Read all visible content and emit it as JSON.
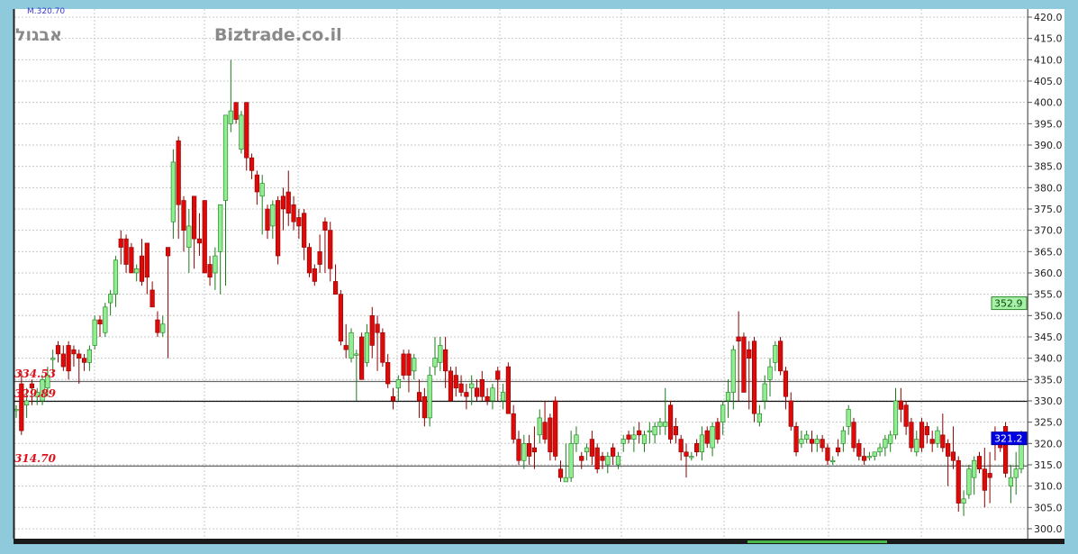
{
  "header": {
    "info": "M.320.70",
    "symbol": "אבגול",
    "watermark": "Biztrade.co.il"
  },
  "levels": [
    {
      "label": "334.53",
      "value": 334.53
    },
    {
      "label": "329.89",
      "value": 329.89
    },
    {
      "label": "314.70",
      "value": 314.7
    }
  ],
  "markers": [
    {
      "label": "352.9",
      "value": 352.9,
      "color": "#a8f0a8"
    },
    {
      "label": "321.2",
      "value": 321.2,
      "color": "#0000e0"
    }
  ],
  "colors": {
    "up": "#90ee90",
    "up_outline": "#1a7a1a",
    "down": "#dd0a0a",
    "down_outline": "#8a0000",
    "background": "#8ecadb"
  },
  "chart_data": {
    "type": "candlestick",
    "title": "",
    "ylim": [
      300,
      420
    ],
    "y_ticks": [
      "300.0",
      "305.0",
      "310.0",
      "315.0",
      "320.0",
      "325.0",
      "330.0",
      "335.0",
      "340.0",
      "345.0",
      "350.0",
      "355.0",
      "360.0",
      "365.0",
      "370.0",
      "375.0",
      "380.0",
      "385.0",
      "390.0",
      "395.0",
      "400.0",
      "405.0",
      "410.0",
      "415.0",
      "420.0"
    ],
    "grid": true,
    "ohlc": [
      [
        328,
        329,
        326,
        328
      ],
      [
        334,
        337,
        322,
        323
      ],
      [
        329,
        333,
        326,
        330
      ],
      [
        334,
        335,
        329,
        333
      ],
      [
        331,
        333,
        329,
        332
      ],
      [
        330,
        336,
        329,
        335
      ],
      [
        333,
        338,
        331,
        336
      ],
      [
        340,
        342,
        336,
        340
      ],
      [
        343,
        344,
        339,
        341
      ],
      [
        341,
        343,
        337,
        338
      ],
      [
        343,
        344,
        335,
        337
      ],
      [
        342,
        343,
        338,
        341
      ],
      [
        341,
        342,
        334,
        340
      ],
      [
        340,
        341,
        337,
        339
      ],
      [
        339,
        343,
        337,
        342
      ],
      [
        343,
        350,
        342,
        349
      ],
      [
        349,
        350,
        345,
        348
      ],
      [
        346,
        353,
        345,
        352
      ],
      [
        353,
        356,
        350,
        355
      ],
      [
        355,
        364,
        352,
        363
      ],
      [
        368,
        370,
        362,
        366
      ],
      [
        368,
        369,
        360,
        362
      ],
      [
        366,
        367,
        360,
        360
      ],
      [
        360,
        362,
        358,
        361
      ],
      [
        364,
        368,
        357,
        358
      ],
      [
        367,
        367,
        355,
        359
      ],
      [
        356,
        358,
        352,
        352
      ],
      [
        349,
        351,
        345,
        346
      ],
      [
        346,
        350,
        345,
        348
      ],
      [
        366,
        366,
        340,
        364
      ],
      [
        372,
        389,
        368,
        386
      ],
      [
        391,
        392,
        368,
        376
      ],
      [
        377,
        378,
        365,
        370
      ],
      [
        366,
        375,
        360,
        371
      ],
      [
        378,
        378,
        361,
        368
      ],
      [
        368,
        374,
        364,
        367
      ],
      [
        377,
        377,
        360,
        360
      ],
      [
        362,
        364,
        357,
        359
      ],
      [
        360,
        366,
        356,
        364
      ],
      [
        365,
        376,
        355,
        376
      ],
      [
        377,
        397,
        357,
        397
      ],
      [
        395,
        410,
        393,
        398
      ],
      [
        400,
        400,
        395,
        396
      ],
      [
        389,
        398,
        388,
        397
      ],
      [
        400,
        400,
        384,
        387
      ],
      [
        387,
        388,
        382,
        384
      ],
      [
        383,
        384,
        376,
        379
      ],
      [
        378,
        383,
        369,
        381
      ],
      [
        375,
        376,
        368,
        370
      ],
      [
        371,
        377,
        368,
        376
      ],
      [
        377,
        378,
        362,
        364
      ],
      [
        378,
        380,
        370,
        375
      ],
      [
        379,
        384,
        371,
        374
      ],
      [
        376,
        378,
        370,
        372
      ],
      [
        373,
        375,
        368,
        371
      ],
      [
        374,
        375,
        363,
        366
      ],
      [
        366,
        367,
        359,
        360
      ],
      [
        361,
        362,
        357,
        358
      ],
      [
        365,
        369,
        360,
        362
      ],
      [
        372,
        373,
        360,
        370
      ],
      [
        370,
        372,
        358,
        361
      ],
      [
        358,
        362,
        355,
        355
      ],
      [
        355,
        356,
        343,
        344
      ],
      [
        343,
        348,
        340,
        342
      ],
      [
        340,
        347,
        339,
        346
      ],
      [
        341,
        342,
        330,
        341
      ],
      [
        345,
        346,
        335,
        335
      ],
      [
        339,
        348,
        338,
        346
      ],
      [
        350,
        352,
        340,
        343
      ],
      [
        348,
        350,
        337,
        346
      ],
      [
        346,
        347,
        338,
        339
      ],
      [
        339,
        341,
        333,
        334
      ],
      [
        331,
        333,
        328,
        330
      ],
      [
        333,
        336,
        330,
        335
      ],
      [
        341,
        342,
        335,
        336
      ],
      [
        341,
        342,
        332,
        336
      ],
      [
        337,
        341,
        335,
        340
      ],
      [
        332,
        335,
        326,
        330
      ],
      [
        331,
        333,
        324,
        326
      ],
      [
        326,
        338,
        324,
        336
      ],
      [
        338,
        345,
        336,
        340
      ],
      [
        339,
        345,
        337,
        343
      ],
      [
        342,
        345,
        333,
        337
      ],
      [
        337,
        338,
        330,
        330
      ],
      [
        336,
        338,
        331,
        333
      ],
      [
        334,
        336,
        331,
        332
      ],
      [
        332,
        334,
        328,
        331
      ],
      [
        333,
        336,
        329,
        334
      ],
      [
        333,
        335,
        330,
        331
      ],
      [
        335,
        337,
        330,
        331
      ],
      [
        331,
        333,
        329,
        330
      ],
      [
        330,
        334,
        328,
        333
      ],
      [
        337,
        338,
        330,
        335
      ],
      [
        330,
        334,
        328,
        332
      ],
      [
        338,
        339,
        327,
        327
      ],
      [
        327,
        329,
        320,
        321
      ],
      [
        321,
        323,
        315,
        316
      ],
      [
        316,
        322,
        314,
        320
      ],
      [
        320,
        322,
        315,
        317
      ],
      [
        319,
        324,
        314,
        318
      ],
      [
        322,
        328,
        320,
        326
      ],
      [
        325,
        330,
        320,
        321
      ],
      [
        326,
        327,
        316,
        318
      ],
      [
        330,
        331,
        316,
        317
      ],
      [
        314,
        316,
        311,
        312
      ],
      [
        311,
        320,
        311,
        312
      ],
      [
        312,
        323,
        311,
        320
      ],
      [
        320,
        324,
        318,
        322
      ],
      [
        317,
        318,
        314,
        316
      ],
      [
        318,
        320,
        316,
        319
      ],
      [
        321,
        323,
        315,
        317
      ],
      [
        319,
        320,
        313,
        314
      ],
      [
        317,
        318,
        314,
        316
      ],
      [
        315,
        318,
        313,
        317
      ],
      [
        319,
        320,
        315,
        317
      ],
      [
        315,
        318,
        314,
        317
      ],
      [
        320,
        322,
        318,
        321
      ],
      [
        322,
        323,
        320,
        321
      ],
      [
        321,
        324,
        318,
        322
      ],
      [
        323,
        325,
        320,
        322
      ],
      [
        320,
        323,
        318,
        322
      ],
      [
        323,
        325,
        320,
        323
      ],
      [
        322,
        325,
        320,
        324
      ],
      [
        324,
        326,
        322,
        325
      ],
      [
        324,
        333,
        322,
        325
      ],
      [
        329,
        330,
        320,
        321
      ],
      [
        324,
        326,
        320,
        322
      ],
      [
        321,
        322,
        316,
        318
      ],
      [
        318,
        320,
        312,
        317
      ],
      [
        317,
        318,
        316,
        317
      ],
      [
        320,
        321,
        317,
        318
      ],
      [
        318,
        324,
        316,
        322
      ],
      [
        323,
        324,
        319,
        320
      ],
      [
        319,
        325,
        317,
        324
      ],
      [
        325,
        326,
        320,
        321
      ],
      [
        325,
        330,
        322,
        329
      ],
      [
        330,
        335,
        326,
        332
      ],
      [
        332,
        343,
        328,
        342
      ],
      [
        345,
        351,
        330,
        344
      ],
      [
        345,
        346,
        332,
        332
      ],
      [
        342,
        344,
        328,
        340
      ],
      [
        344,
        345,
        325,
        327
      ],
      [
        325,
        329,
        324,
        327
      ],
      [
        330,
        336,
        328,
        334
      ],
      [
        335,
        340,
        331,
        338
      ],
      [
        339,
        344,
        337,
        343
      ],
      [
        344,
        345,
        336,
        337
      ],
      [
        337,
        338,
        328,
        331
      ],
      [
        330,
        332,
        323,
        324
      ],
      [
        324,
        325,
        317,
        318
      ],
      [
        320,
        323,
        319,
        321
      ],
      [
        321,
        323,
        320,
        322
      ],
      [
        321,
        323,
        318,
        320
      ],
      [
        320,
        322,
        318,
        321
      ],
      [
        321,
        322,
        318,
        319
      ],
      [
        319,
        320,
        315,
        316
      ],
      [
        316,
        317,
        315,
        316
      ],
      [
        319,
        321,
        317,
        318
      ],
      [
        320,
        324,
        318,
        323
      ],
      [
        324,
        329,
        322,
        328
      ],
      [
        325,
        326,
        318,
        319
      ],
      [
        320,
        321,
        316,
        317
      ],
      [
        317,
        319,
        315,
        316
      ],
      [
        317,
        318,
        316,
        317
      ],
      [
        317,
        318,
        316,
        318
      ],
      [
        318,
        320,
        317,
        319
      ],
      [
        319,
        322,
        317,
        321
      ],
      [
        320,
        323,
        318,
        322
      ],
      [
        322,
        333,
        321,
        330
      ],
      [
        330,
        333,
        325,
        328
      ],
      [
        329,
        330,
        322,
        324
      ],
      [
        325,
        326,
        318,
        319
      ],
      [
        318,
        323,
        317,
        321
      ],
      [
        325,
        326,
        318,
        319
      ],
      [
        324,
        325,
        320,
        322
      ],
      [
        321,
        323,
        318,
        320
      ],
      [
        320,
        324,
        319,
        323
      ],
      [
        322,
        327,
        318,
        319
      ],
      [
        320,
        321,
        310,
        317
      ],
      [
        318,
        324,
        314,
        316
      ],
      [
        316,
        317,
        304,
        306
      ],
      [
        306,
        309,
        303,
        307
      ],
      [
        308,
        315,
        307,
        314
      ],
      [
        312,
        317,
        308,
        316
      ],
      [
        317,
        318,
        313,
        314
      ],
      [
        314,
        319,
        305,
        309
      ],
      [
        313,
        318,
        306,
        312
      ],
      [
        322,
        324,
        316,
        320
      ],
      [
        321,
        322,
        318,
        319
      ],
      [
        324,
        325,
        312,
        313
      ],
      [
        310,
        315,
        306,
        312
      ],
      [
        312,
        318,
        308,
        314
      ],
      [
        314,
        323,
        313,
        321
      ]
    ]
  }
}
